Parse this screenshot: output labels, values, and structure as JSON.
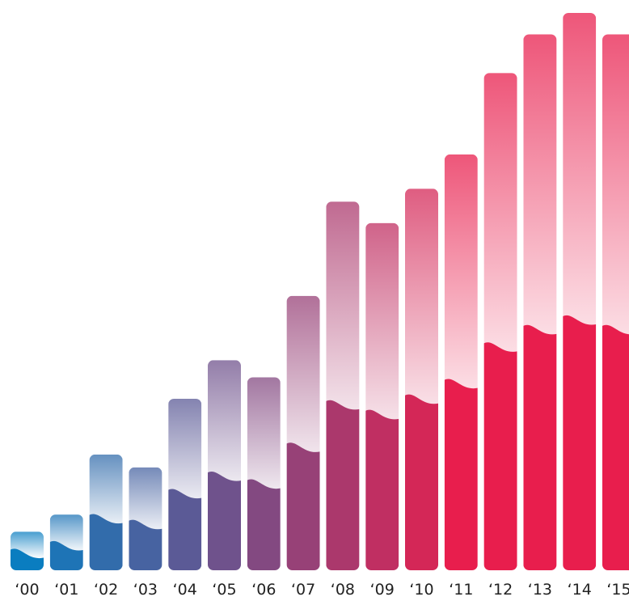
{
  "chart_data": {
    "type": "bar",
    "title": "",
    "xlabel": "",
    "ylabel": "",
    "categories": [
      "‘00",
      "‘01",
      "‘02",
      "‘03",
      "‘04",
      "‘05",
      "‘06",
      "‘07",
      "‘08",
      "‘09",
      "‘10",
      "‘11",
      "‘12",
      "‘13",
      "‘14",
      "‘15"
    ],
    "values": [
      9,
      13,
      27,
      24,
      40,
      49,
      45,
      64,
      86,
      81,
      89,
      97,
      116,
      125,
      130,
      125
    ],
    "ylim": [
      0,
      130
    ],
    "grid": false,
    "legend": "none",
    "colors": {
      "start": "#0a7dc0",
      "end": "#e81e4d"
    }
  }
}
